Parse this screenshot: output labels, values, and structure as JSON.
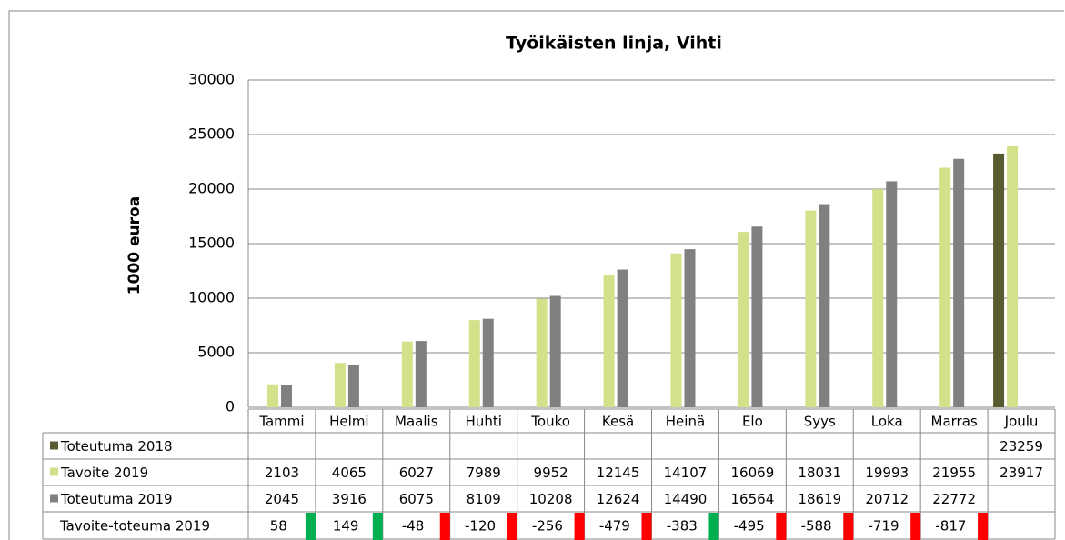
{
  "chart_data": {
    "type": "bar",
    "title": "Työikäisten linja, Vihti",
    "ylabel": "1000 euroa",
    "categories": [
      "Tammi",
      "Helmi",
      "Maalis",
      "Huhti",
      "Touko",
      "Kesä",
      "Heinä",
      "Elo",
      "Syys",
      "Loka",
      "Marras",
      "Joulu"
    ],
    "series": [
      {
        "name": "Toteutuma 2018",
        "color": "#585a2f",
        "values": [
          null,
          null,
          null,
          null,
          null,
          null,
          null,
          null,
          null,
          null,
          null,
          23259
        ]
      },
      {
        "name": "Tavoite 2019",
        "color": "#d4e08a",
        "values": [
          2103,
          4065,
          6027,
          7989,
          9952,
          12145,
          14107,
          16069,
          18031,
          19993,
          21955,
          23917
        ]
      },
      {
        "name": "Toteutuma 2019",
        "color": "#808080",
        "values": [
          2045,
          3916,
          6075,
          8109,
          10208,
          12624,
          14490,
          16564,
          18619,
          20712,
          22772,
          null
        ]
      }
    ],
    "difference": {
      "name": "Tavoite-toteuma 2019",
      "values": [
        58,
        149,
        -48,
        -120,
        -256,
        -479,
        -383,
        -495,
        -588,
        -719,
        -817,
        null
      ],
      "indicator_colors": [
        "#00b050",
        "#00b050",
        "#ff0000",
        "#ff0000",
        "#ff0000",
        "#ff0000",
        "#00b050",
        "#ff0000",
        "#ff0000",
        "#ff0000",
        "#ff0000",
        null
      ]
    },
    "ylim": [
      0,
      30000
    ],
    "yticks": [
      0,
      5000,
      10000,
      15000,
      20000,
      25000,
      30000
    ],
    "grid": true
  }
}
